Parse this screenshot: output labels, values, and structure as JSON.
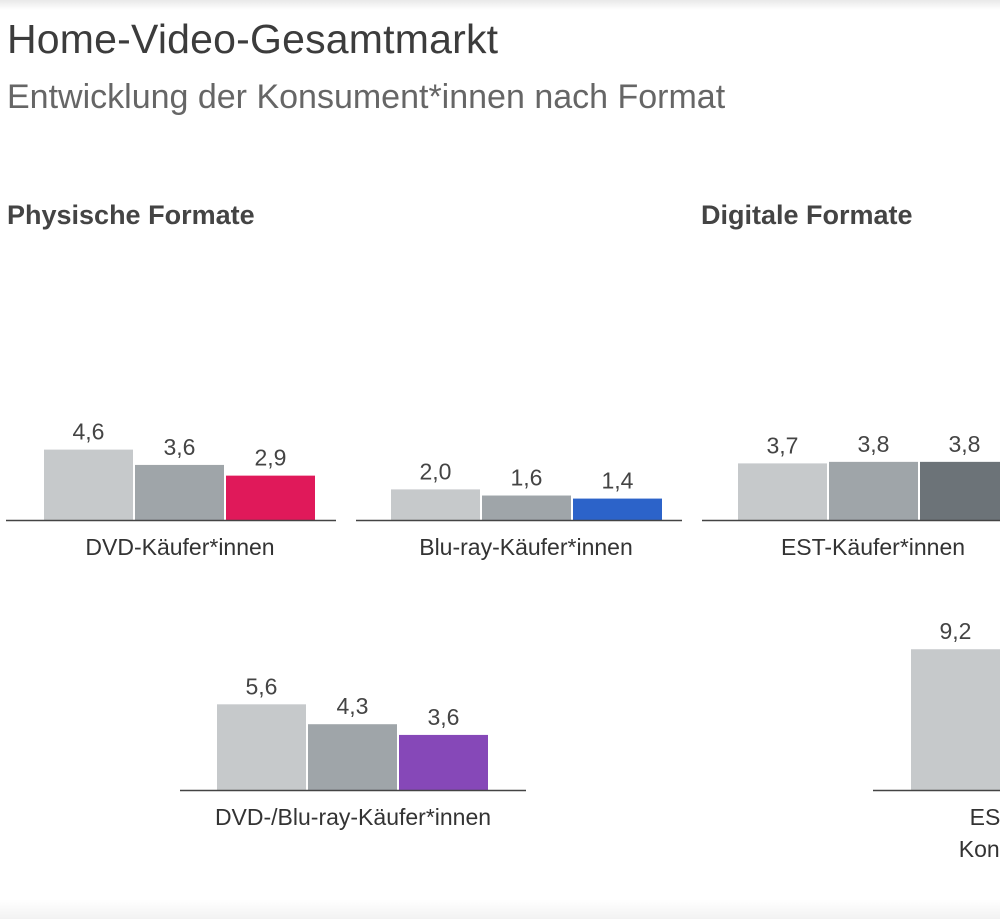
{
  "header": {
    "title": "Home-Video-Gesamtmarkt",
    "subtitle": "Entwicklung der Konsument*innen nach Format"
  },
  "sections": {
    "physical": "Physische Formate",
    "digital": "Digitale Formate"
  },
  "colors": {
    "year1": "#c6c9cb",
    "year2": "#9fa5a9",
    "year3_dark": "#6c7378",
    "dvd": "#e0195a",
    "bluray": "#2c63c9",
    "combined": "#8648b8",
    "axis": "#444444"
  },
  "chart_data": [
    {
      "type": "bar",
      "category": "DVD-Käufer*innen",
      "values": [
        4.6,
        3.6,
        2.9
      ],
      "labels": [
        "4,6",
        "3,6",
        "2,9"
      ],
      "highlight_color": "#e0195a"
    },
    {
      "type": "bar",
      "category": "Blu-ray-Käufer*innen",
      "values": [
        2.0,
        1.6,
        1.4
      ],
      "labels": [
        "2,0",
        "1,6",
        "1,4"
      ],
      "highlight_color": "#2c63c9"
    },
    {
      "type": "bar",
      "category": "EST-Käufer*innen",
      "values": [
        3.7,
        3.8,
        3.8
      ],
      "labels": [
        "3,7",
        "3,8",
        "3,8"
      ],
      "highlight_color": "#6c7378"
    },
    {
      "type": "bar",
      "category": "DVD-/Blu-ray-Käufer*innen",
      "values": [
        5.6,
        4.3,
        3.6
      ],
      "labels": [
        "5,6",
        "4,3",
        "3,6"
      ],
      "highlight_color": "#8648b8"
    },
    {
      "type": "bar",
      "category_lines": [
        "ES",
        "Kons"
      ],
      "values": [
        9.2
      ],
      "labels": [
        "9,2"
      ],
      "highlight_color": "#c6c9cb"
    }
  ]
}
